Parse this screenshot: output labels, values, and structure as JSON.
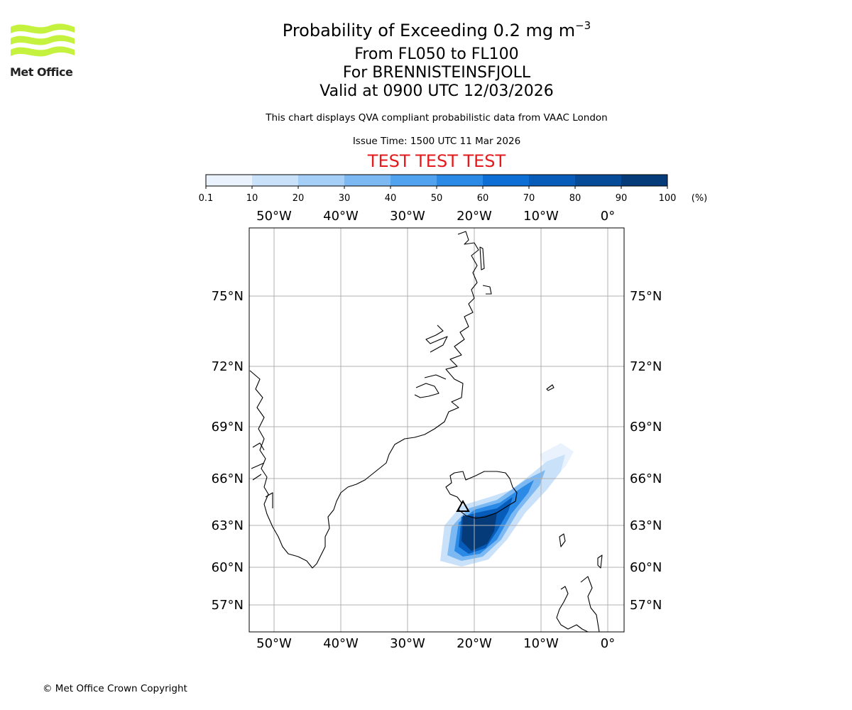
{
  "header": {
    "logo_text": "Met Office",
    "title_prefix": "Probability of Exceeding 0.2 mg m",
    "title_exponent": "−3",
    "level_range": "From FL050 to FL100",
    "volcano": "For BRENNISTEINSFJOLL",
    "valid_time": "Valid at 0900 UTC 12/03/2026",
    "description": "This chart displays QVA compliant probabilistic data from VAAC London",
    "issue_time": "Issue Time: 1500 UTC 11 Mar 2026",
    "test_banner": "TEST TEST TEST"
  },
  "colorbar": {
    "ticks": [
      "0.1",
      "10",
      "20",
      "30",
      "40",
      "50",
      "60",
      "70",
      "80",
      "90",
      "100"
    ],
    "unit": "(%)",
    "colors": [
      "#eaf3fd",
      "#c9e2fa",
      "#a6cff7",
      "#7cb9f2",
      "#51a3ef",
      "#2a8ae6",
      "#0d6fd6",
      "#075cb9",
      "#064b98",
      "#053b79"
    ]
  },
  "map": {
    "lon_labels": [
      "50°W",
      "40°W",
      "30°W",
      "20°W",
      "10°W",
      "0°"
    ],
    "lat_labels": [
      "75°N",
      "72°N",
      "69°N",
      "66°N",
      "63°N",
      "60°N",
      "57°N"
    ],
    "volcano_marker": "volcano-triangle",
    "probability_plume": {
      "bands": [
        10,
        30,
        50,
        70,
        90,
        100
      ],
      "peak_location": "south-west of Iceland"
    }
  },
  "footer": {
    "copyright": "© Met Office Crown Copyright"
  }
}
